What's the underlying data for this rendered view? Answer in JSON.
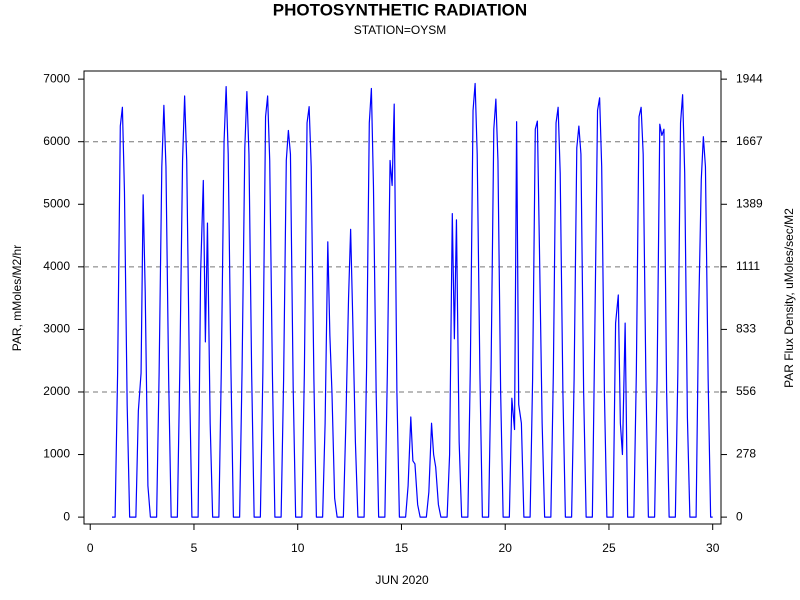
{
  "chart_data": {
    "type": "line",
    "title": "PHOTOSYNTHETIC RADIATION",
    "subtitle": "STATION=OYSM",
    "x_label": "JUN 2020",
    "y_label": "PAR, mMoles/M2/hr",
    "y2_label": "PAR Flux Density, uMoles/sec/M2",
    "color": "#0000ff",
    "xlim": [
      -0.3,
      30.4
    ],
    "xticks": [
      0,
      5,
      10,
      15,
      20,
      25,
      30
    ],
    "ylim": [
      -110,
      7130
    ],
    "yticks": [
      0,
      1000,
      2000,
      3000,
      4000,
      5000,
      6000,
      7000
    ],
    "y2lim": [
      -30.56,
      1980.56
    ],
    "y2ticks": [
      0,
      {
        "value": 277.78,
        "label": "278"
      },
      {
        "value": 555.56,
        "label": "556"
      },
      {
        "value": 833.33,
        "label": "833"
      },
      {
        "value": 1111.11,
        "label": "1111"
      },
      {
        "value": 1388.89,
        "label": "1389"
      },
      {
        "value": 1666.67,
        "label": "1667"
      },
      {
        "value": 1944.44,
        "label": "1944"
      }
    ],
    "reference_lines": [
      2000,
      4000,
      6000
    ],
    "x": [
      1.05,
      1.2,
      1.32,
      1.45,
      1.55,
      1.65,
      1.78,
      1.9,
      2.2,
      2.32,
      2.45,
      2.55,
      2.65,
      2.78,
      2.9,
      3.2,
      3.32,
      3.45,
      3.55,
      3.65,
      3.78,
      3.9,
      4.2,
      4.32,
      4.45,
      4.55,
      4.65,
      4.78,
      4.9,
      5.2,
      5.32,
      5.45,
      5.55,
      5.65,
      5.78,
      5.9,
      6.2,
      6.32,
      6.45,
      6.55,
      6.65,
      6.78,
      6.9,
      7.2,
      7.32,
      7.45,
      7.55,
      7.65,
      7.78,
      7.9,
      8.2,
      8.32,
      8.45,
      8.55,
      8.65,
      8.78,
      8.9,
      9.2,
      9.32,
      9.45,
      9.55,
      9.65,
      9.78,
      9.9,
      10.2,
      10.32,
      10.45,
      10.55,
      10.65,
      10.78,
      10.9,
      11.2,
      11.32,
      11.45,
      11.55,
      11.65,
      11.78,
      11.9,
      12.2,
      12.32,
      12.45,
      12.55,
      12.65,
      12.78,
      12.9,
      13.2,
      13.32,
      13.45,
      13.55,
      13.65,
      13.78,
      13.9,
      14.2,
      14.32,
      14.45,
      14.55,
      14.65,
      14.78,
      14.9,
      15.2,
      15.32,
      15.45,
      15.55,
      15.65,
      15.78,
      15.9,
      16.2,
      16.32,
      16.45,
      16.55,
      16.65,
      16.78,
      16.9,
      17.2,
      17.32,
      17.45,
      17.55,
      17.65,
      17.78,
      17.9,
      18.2,
      18.32,
      18.45,
      18.55,
      18.65,
      18.78,
      18.9,
      19.2,
      19.32,
      19.45,
      19.55,
      19.65,
      19.78,
      19.9,
      20.2,
      20.32,
      20.45,
      20.55,
      20.65,
      20.78,
      20.9,
      21.2,
      21.32,
      21.45,
      21.55,
      21.65,
      21.78,
      21.9,
      22.2,
      22.32,
      22.45,
      22.55,
      22.65,
      22.78,
      22.9,
      23.2,
      23.32,
      23.45,
      23.55,
      23.65,
      23.78,
      23.9,
      24.2,
      24.32,
      24.45,
      24.55,
      24.65,
      24.78,
      24.9,
      25.2,
      25.32,
      25.45,
      25.55,
      25.65,
      25.78,
      25.9,
      26.2,
      26.32,
      26.45,
      26.55,
      26.65,
      26.78,
      26.9,
      27.2,
      27.32,
      27.45,
      27.55,
      27.65,
      27.78,
      27.9,
      28.2,
      28.32,
      28.45,
      28.55,
      28.65,
      28.78,
      28.9,
      29.2,
      29.32,
      29.45,
      29.55,
      29.65,
      29.78,
      29.9,
      30.0
    ],
    "values": [
      0,
      0,
      2300,
      6250,
      6550,
      5200,
      1800,
      0,
      0,
      1700,
      2300,
      5150,
      3600,
      500,
      0,
      0,
      2300,
      5600,
      6580,
      5600,
      2200,
      0,
      0,
      2400,
      5700,
      6730,
      5700,
      2300,
      0,
      0,
      3900,
      5380,
      2800,
      4700,
      1500,
      0,
      0,
      2400,
      6000,
      6880,
      5800,
      2400,
      0,
      0,
      2400,
      5900,
      6800,
      5800,
      2300,
      0,
      0,
      2300,
      6400,
      6730,
      5700,
      2300,
      0,
      0,
      2200,
      5700,
      6180,
      5800,
      2100,
      0,
      0,
      2300,
      6300,
      6560,
      5600,
      2200,
      0,
      0,
      1500,
      4400,
      2900,
      2000,
      300,
      0,
      0,
      1500,
      3500,
      4600,
      3200,
      1200,
      0,
      0,
      2400,
      6300,
      6850,
      5300,
      2000,
      0,
      0,
      2300,
      5700,
      5300,
      6600,
      2000,
      0,
      0,
      500,
      1600,
      900,
      850,
      200,
      0,
      0,
      400,
      1500,
      1000,
      800,
      200,
      0,
      0,
      1000,
      4850,
      2850,
      4750,
      1200,
      0,
      0,
      2400,
      6500,
      6930,
      5800,
      2300,
      0,
      0,
      2400,
      6200,
      6680,
      5700,
      2000,
      0,
      0,
      1900,
      1400,
      6320,
      1800,
      1500,
      0,
      0,
      2200,
      6200,
      6330,
      4300,
      1500,
      0,
      0,
      2300,
      6300,
      6550,
      5500,
      2000,
      0,
      0,
      2200,
      5900,
      6250,
      5800,
      2000,
      0,
      0,
      3000,
      6500,
      6700,
      5600,
      2000,
      0,
      0,
      3100,
      3550,
      1500,
      1000,
      3100,
      0,
      0,
      2300,
      6400,
      6550,
      5800,
      2200,
      0,
      0,
      2200,
      6280,
      6100,
      6200,
      2000,
      0,
      0,
      2300,
      6300,
      6750,
      5500,
      1600,
      0,
      0,
      3200,
      5400,
      6080,
      5600,
      2200,
      0,
      0
    ]
  }
}
